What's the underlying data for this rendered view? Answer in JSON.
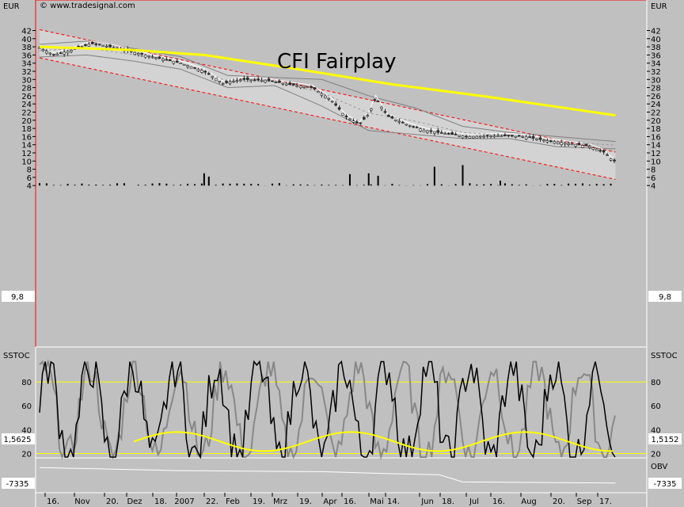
{
  "header": {
    "currency_left": "EUR",
    "currency_right": "EUR",
    "copyright": "© www.tradesignal.com"
  },
  "chart_data": [
    {
      "type": "candlestick",
      "title": "CFI Fairplay",
      "ylabel": "EUR",
      "ylim": [
        4,
        44
      ],
      "y_ticks": [
        4,
        6,
        8,
        10,
        12,
        14,
        16,
        18,
        20,
        22,
        24,
        26,
        28,
        30,
        32,
        34,
        36,
        38,
        40,
        42
      ],
      "x_ticks": [
        "16.",
        "Nov",
        "20.",
        "Dez",
        "18.",
        "2007",
        "22.",
        "Feb",
        "19.",
        "Mrz",
        "19.",
        "Apr",
        "16.",
        "Mai",
        "14.",
        "Jun",
        "18.",
        "Jul",
        "16.",
        "Aug",
        "20.",
        "Sep",
        "17."
      ],
      "last_value": "9,8",
      "price_path": [
        [
          0,
          37.8
        ],
        [
          6,
          36.0
        ],
        [
          14,
          37.2
        ],
        [
          22,
          38.8
        ],
        [
          32,
          37.8
        ],
        [
          42,
          36.4
        ],
        [
          52,
          35.0
        ],
        [
          60,
          34.0
        ],
        [
          70,
          32.0
        ],
        [
          78,
          29.0
        ],
        [
          86,
          30.0
        ],
        [
          96,
          29.8
        ],
        [
          106,
          28.8
        ],
        [
          116,
          28.0
        ],
        [
          124,
          25.0
        ],
        [
          130,
          21.0
        ],
        [
          136,
          19.0
        ],
        [
          140,
          21.5
        ],
        [
          143,
          25.5
        ],
        [
          148,
          21.0
        ],
        [
          156,
          19.0
        ],
        [
          164,
          17.5
        ],
        [
          172,
          16.8
        ],
        [
          182,
          16.0
        ],
        [
          196,
          16.2
        ],
        [
          206,
          16.0
        ],
        [
          216,
          15.0
        ],
        [
          226,
          14.2
        ],
        [
          234,
          13.6
        ],
        [
          240,
          12.2
        ],
        [
          244,
          10.0
        ]
      ],
      "sma_200": [
        [
          0,
          38.0
        ],
        [
          40,
          37.2
        ],
        [
          70,
          36.0
        ],
        [
          110,
          32.5
        ],
        [
          150,
          28.8
        ],
        [
          190,
          25.8
        ],
        [
          245,
          21.2
        ]
      ],
      "bollinger_upper": [
        [
          0,
          38.6
        ],
        [
          20,
          39.4
        ],
        [
          40,
          37.6
        ],
        [
          60,
          35.6
        ],
        [
          80,
          31.0
        ],
        [
          100,
          30.5
        ],
        [
          120,
          30.0
        ],
        [
          140,
          26.0
        ],
        [
          160,
          23.0
        ],
        [
          180,
          18.5
        ],
        [
          200,
          17.0
        ],
        [
          220,
          16.0
        ],
        [
          245,
          14.8
        ]
      ],
      "bollinger_lower": [
        [
          0,
          35.5
        ],
        [
          20,
          36.0
        ],
        [
          40,
          34.5
        ],
        [
          60,
          32.5
        ],
        [
          80,
          28.0
        ],
        [
          100,
          28.5
        ],
        [
          120,
          23.5
        ],
        [
          140,
          17.5
        ],
        [
          160,
          16.5
        ],
        [
          180,
          15.5
        ],
        [
          200,
          15.5
        ],
        [
          220,
          13.5
        ],
        [
          245,
          13.0
        ]
      ],
      "trend_upper": [
        [
          0,
          42.2
        ],
        [
          245,
          12.2
        ]
      ],
      "trend_lower": [
        [
          0,
          35.3
        ],
        [
          245,
          5.5
        ]
      ],
      "volume_spikes": [
        {
          "t": 168,
          "v": 8.6
        },
        {
          "t": 180,
          "v": 9.0
        },
        {
          "t": 132,
          "v": 6.8
        },
        {
          "t": 140,
          "v": 7.0
        },
        {
          "t": 144,
          "v": 6.4
        },
        {
          "t": 70,
          "v": 7.0
        },
        {
          "t": 72,
          "v": 6.2
        },
        {
          "t": 196,
          "v": 5.2
        }
      ]
    },
    {
      "type": "line",
      "title": "SSTOC",
      "ylim": [
        15,
        100
      ],
      "y_ticks": [
        20,
        40,
        60,
        80
      ],
      "levels": [
        20,
        80
      ],
      "last_value": "1,5625",
      "last_value_right": "1,5152"
    },
    {
      "type": "line",
      "title": "OBV",
      "last_value": "-7335",
      "obv_path": [
        [
          0,
          0.2
        ],
        [
          60,
          0.35
        ],
        [
          120,
          0.4
        ],
        [
          150,
          0.5
        ],
        [
          170,
          0.55
        ],
        [
          180,
          0.9
        ],
        [
          245,
          0.95
        ]
      ]
    }
  ],
  "colors": {
    "background": "#c0c0c0",
    "channel_fill": "#d3d3d3",
    "sma": "#ffff00",
    "trend": "#ff0000",
    "bollinger": "#808080",
    "white_line": "#ffffff",
    "stoch_yellow": "#ffff00",
    "candle_body": "#333333"
  }
}
